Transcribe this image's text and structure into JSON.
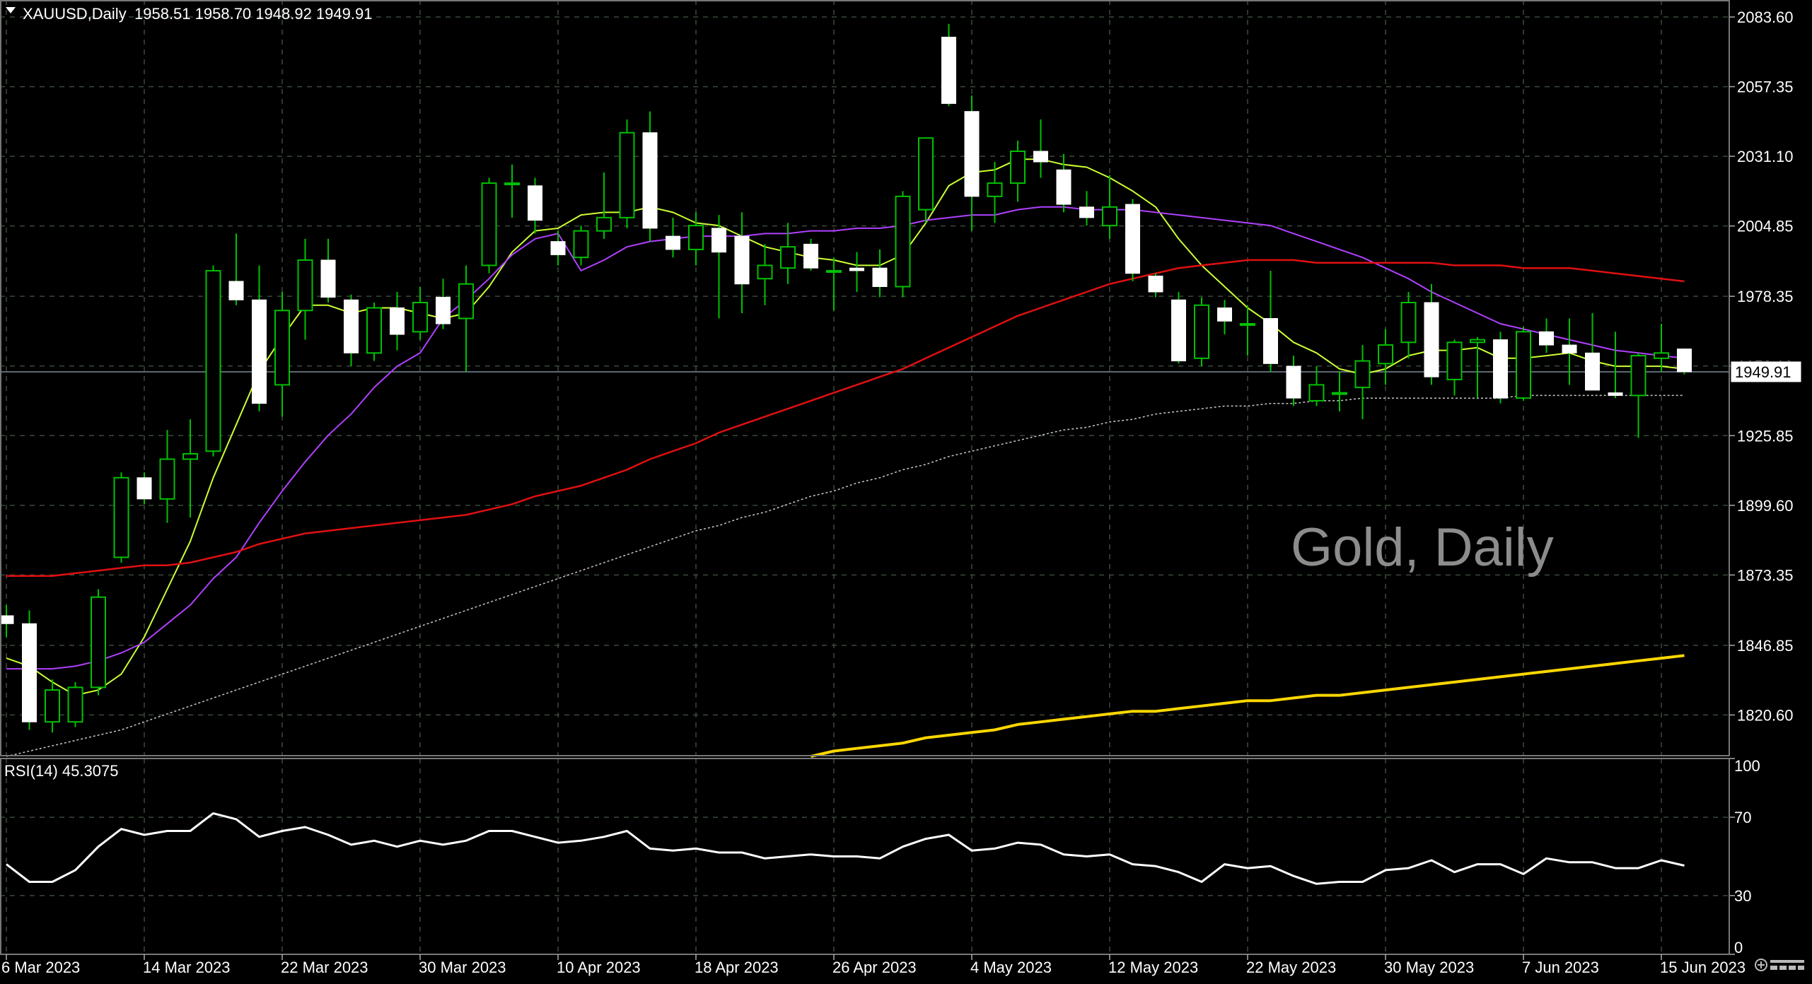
{
  "chart_data": {
    "type": "candlestick",
    "symbol_header": "XAUUSD,Daily",
    "ohlc_header": "1958.51 1958.70 1948.92 1949.91",
    "watermark": "Gold, Daily",
    "current_price_label": "1949.91",
    "current_price": 1949.91,
    "price_range": [
      1805.0,
      2090.0
    ],
    "grid": true,
    "price_ticks": [
      "2083.60",
      "2057.35",
      "2031.10",
      "2004.85",
      "1978.35",
      "1952.10",
      "1925.85",
      "1899.60",
      "1873.35",
      "1846.85",
      "1820.60"
    ],
    "date_labels": [
      "6 Mar 2023",
      "14 Mar 2023",
      "22 Mar 2023",
      "30 Mar 2023",
      "10 Apr 2023",
      "18 Apr 2023",
      "26 Apr 2023",
      "4 May 2023",
      "12 May 2023",
      "22 May 2023",
      "30 May 2023",
      "7 Jun 2023",
      "15 Jun 2023"
    ],
    "date_label_bars": [
      0,
      6,
      12,
      18,
      24,
      30,
      36,
      42,
      48,
      54,
      60,
      66,
      72
    ],
    "colors": {
      "background": "#000000",
      "grid": "#3a4a3a",
      "bull_candle": "#00c000",
      "bear_candle": "#ffffff",
      "ma_short": "#ccff33",
      "ma_medium": "#b040ff",
      "ma_long": "#e01010",
      "ma_very_long": "#c8c8c8",
      "ma_yellow": "#ffd700",
      "rsi_line": "#ffffff"
    },
    "candles": [
      {
        "o": 1858,
        "h": 1862,
        "l": 1850,
        "c": 1855
      },
      {
        "o": 1855,
        "h": 1860,
        "l": 1815,
        "c": 1818
      },
      {
        "o": 1818,
        "h": 1834,
        "l": 1814,
        "c": 1830
      },
      {
        "o": 1818,
        "h": 1833,
        "l": 1816,
        "c": 1831
      },
      {
        "o": 1831,
        "h": 1868,
        "l": 1828,
        "c": 1865
      },
      {
        "o": 1880,
        "h": 1912,
        "l": 1878,
        "c": 1910
      },
      {
        "o": 1910,
        "h": 1912,
        "l": 1900,
        "c": 1902
      },
      {
        "o": 1902,
        "h": 1928,
        "l": 1893,
        "c": 1917
      },
      {
        "o": 1917,
        "h": 1932,
        "l": 1895,
        "c": 1919
      },
      {
        "o": 1920,
        "h": 1990,
        "l": 1918,
        "c": 1988
      },
      {
        "o": 1984,
        "h": 2002,
        "l": 1975,
        "c": 1977
      },
      {
        "o": 1977,
        "h": 1990,
        "l": 1935,
        "c": 1938
      },
      {
        "o": 1945,
        "h": 1980,
        "l": 1933,
        "c": 1973
      },
      {
        "o": 1973,
        "h": 2000,
        "l": 1962,
        "c": 1992
      },
      {
        "o": 1992,
        "h": 2000,
        "l": 1976,
        "c": 1978
      },
      {
        "o": 1977,
        "h": 1979,
        "l": 1952,
        "c": 1957
      },
      {
        "o": 1957,
        "h": 1976,
        "l": 1954,
        "c": 1974
      },
      {
        "o": 1974,
        "h": 1980,
        "l": 1958,
        "c": 1964
      },
      {
        "o": 1965,
        "h": 1982,
        "l": 1962,
        "c": 1976
      },
      {
        "o": 1978,
        "h": 1985,
        "l": 1966,
        "c": 1968
      },
      {
        "o": 1970,
        "h": 1990,
        "l": 1950,
        "c": 1983
      },
      {
        "o": 1990,
        "h": 2023,
        "l": 1987,
        "c": 2021
      },
      {
        "o": 2021,
        "h": 2028,
        "l": 2008,
        "c": 2021
      },
      {
        "o": 2020,
        "h": 2023,
        "l": 2002,
        "c": 2007
      },
      {
        "o": 1999,
        "h": 2003,
        "l": 1990,
        "c": 1994
      },
      {
        "o": 1993,
        "h": 2005,
        "l": 1990,
        "c": 2003
      },
      {
        "o": 2003,
        "h": 2025,
        "l": 2000,
        "c": 2008
      },
      {
        "o": 2008,
        "h": 2045,
        "l": 2004,
        "c": 2040
      },
      {
        "o": 2040,
        "h": 2048,
        "l": 1999,
        "c": 2004
      },
      {
        "o": 2001,
        "h": 2008,
        "l": 1993,
        "c": 1996
      },
      {
        "o": 1996,
        "h": 2010,
        "l": 1990,
        "c": 2005
      },
      {
        "o": 2004,
        "h": 2009,
        "l": 1970,
        "c": 1995
      },
      {
        "o": 2001,
        "h": 2010,
        "l": 1972,
        "c": 1983
      },
      {
        "o": 1985,
        "h": 1998,
        "l": 1975,
        "c": 1990
      },
      {
        "o": 1989,
        "h": 2006,
        "l": 1983,
        "c": 1997
      },
      {
        "o": 1998,
        "h": 2000,
        "l": 1988,
        "c": 1989
      },
      {
        "o": 1988,
        "h": 1993,
        "l": 1973,
        "c": 1988
      },
      {
        "o": 1989,
        "h": 1995,
        "l": 1980,
        "c": 1988
      },
      {
        "o": 1989,
        "h": 1996,
        "l": 1978,
        "c": 1982
      },
      {
        "o": 1982,
        "h": 2018,
        "l": 1978,
        "c": 2016
      },
      {
        "o": 2011,
        "h": 2037,
        "l": 2006,
        "c": 2038
      },
      {
        "o": 2076,
        "h": 2081,
        "l": 2050,
        "c": 2051
      },
      {
        "o": 2048,
        "h": 2054,
        "l": 2003,
        "c": 2016
      },
      {
        "o": 2016,
        "h": 2029,
        "l": 2006,
        "c": 2021
      },
      {
        "o": 2021,
        "h": 2037,
        "l": 2014,
        "c": 2033
      },
      {
        "o": 2033,
        "h": 2045,
        "l": 2023,
        "c": 2029
      },
      {
        "o": 2026,
        "h": 2032,
        "l": 2010,
        "c": 2013
      },
      {
        "o": 2012,
        "h": 2018,
        "l": 2005,
        "c": 2008
      },
      {
        "o": 2005,
        "h": 2024,
        "l": 2000,
        "c": 2012
      },
      {
        "o": 2013,
        "h": 2015,
        "l": 1984,
        "c": 1987
      },
      {
        "o": 1986,
        "h": 1987,
        "l": 1978,
        "c": 1980
      },
      {
        "o": 1977,
        "h": 1980,
        "l": 1953,
        "c": 1954
      },
      {
        "o": 1955,
        "h": 1978,
        "l": 1952,
        "c": 1975
      },
      {
        "o": 1974,
        "h": 1977,
        "l": 1964,
        "c": 1969
      },
      {
        "o": 1968,
        "h": 1975,
        "l": 1956,
        "c": 1968
      },
      {
        "o": 1970,
        "h": 1988,
        "l": 1950,
        "c": 1953
      },
      {
        "o": 1952,
        "h": 1956,
        "l": 1937,
        "c": 1940
      },
      {
        "o": 1939,
        "h": 1952,
        "l": 1937,
        "c": 1945
      },
      {
        "o": 1942,
        "h": 1950,
        "l": 1935,
        "c": 1942
      },
      {
        "o": 1944,
        "h": 1960,
        "l": 1932,
        "c": 1954
      },
      {
        "o": 1953,
        "h": 1966,
        "l": 1945,
        "c": 1960
      },
      {
        "o": 1961,
        "h": 1980,
        "l": 1955,
        "c": 1976
      },
      {
        "o": 1976,
        "h": 1983,
        "l": 1945,
        "c": 1948
      },
      {
        "o": 1947,
        "h": 1962,
        "l": 1941,
        "c": 1961
      },
      {
        "o": 1961,
        "h": 1963,
        "l": 1940,
        "c": 1962
      },
      {
        "o": 1962,
        "h": 1965,
        "l": 1938,
        "c": 1940
      },
      {
        "o": 1940,
        "h": 1967,
        "l": 1939,
        "c": 1965
      },
      {
        "o": 1965,
        "h": 1970,
        "l": 1957,
        "c": 1960
      },
      {
        "o": 1960,
        "h": 1970,
        "l": 1945,
        "c": 1957
      },
      {
        "o": 1957,
        "h": 1972,
        "l": 1944,
        "c": 1943
      },
      {
        "o": 1942,
        "h": 1965,
        "l": 1940,
        "c": 1941
      },
      {
        "o": 1941,
        "h": 1957,
        "l": 1925,
        "c": 1956
      },
      {
        "o": 1955,
        "h": 1968,
        "l": 1950,
        "c": 1957
      },
      {
        "o": 1958.51,
        "h": 1958.7,
        "l": 1948.92,
        "c": 1949.91
      }
    ],
    "moving_averages": [
      {
        "key": "ma_short",
        "values": [
          1842,
          1839,
          1833,
          1828,
          1830,
          1836,
          1850,
          1868,
          1886,
          1910,
          1930,
          1950,
          1963,
          1975,
          1975,
          1972,
          1974,
          1974,
          1972,
          1970,
          1972,
          1982,
          1995,
          2003,
          2004,
          2009,
          2010,
          2010,
          2012,
          2010,
          2006,
          2005,
          2001,
          1997,
          1995,
          1993,
          1992,
          1990,
          1990,
          1994,
          2006,
          2020,
          2025,
          2026,
          2030,
          2030,
          2028,
          2027,
          2023,
          2018,
          2012,
          2000,
          1990,
          1982,
          1974,
          1968,
          1961,
          1957,
          1951,
          1949,
          1951,
          1956,
          1958,
          1958,
          1959,
          1955,
          1955,
          1956,
          1957,
          1954,
          1952,
          1952,
          1952,
          1951
        ]
      },
      {
        "key": "ma_medium",
        "values": [
          1838,
          1838,
          1838,
          1839,
          1841,
          1844,
          1848,
          1855,
          1862,
          1872,
          1880,
          1893,
          1905,
          1916,
          1926,
          1934,
          1944,
          1952,
          1957,
          1970,
          1977,
          1985,
          1994,
          2000,
          2002,
          1988,
          1992,
          1997,
          1999,
          2000,
          2001,
          2001,
          2001,
          2002,
          2002,
          2003,
          2003,
          2004,
          2004,
          2005,
          2007,
          2008,
          2009,
          2009,
          2011,
          2012,
          2012,
          2011,
          2011,
          2011,
          2010,
          2009,
          2008,
          2007,
          2006,
          2005,
          2002,
          1999,
          1996,
          1993,
          1989,
          1985,
          1980,
          1976,
          1972,
          1968,
          1966,
          1964,
          1962,
          1960,
          1958,
          1957,
          1956,
          1955
        ]
      },
      {
        "key": "ma_long",
        "values": [
          1873,
          1873,
          1873,
          1874,
          1875,
          1876,
          1877,
          1877,
          1878,
          1880,
          1882,
          1885,
          1887,
          1889,
          1890,
          1891,
          1892,
          1893,
          1894,
          1895,
          1896,
          1898,
          1900,
          1903,
          1905,
          1907,
          1910,
          1913,
          1917,
          1920,
          1923,
          1927,
          1930,
          1933,
          1936,
          1939,
          1942,
          1945,
          1948,
          1951,
          1955,
          1959,
          1963,
          1967,
          1971,
          1974,
          1977,
          1980,
          1983,
          1985,
          1987,
          1989,
          1990,
          1991,
          1992,
          1992,
          1992,
          1991,
          1991,
          1991,
          1991,
          1991,
          1991,
          1990,
          1990,
          1990,
          1989,
          1989,
          1989,
          1988,
          1987,
          1986,
          1985,
          1984
        ]
      },
      {
        "key": "ma_very_long",
        "values": [
          1805,
          1807,
          1809,
          1811,
          1813,
          1815,
          1818,
          1821,
          1824,
          1827,
          1830,
          1833,
          1836,
          1839,
          1842,
          1845,
          1848,
          1851,
          1854,
          1857,
          1860,
          1863,
          1866,
          1869,
          1872,
          1875,
          1878,
          1881,
          1884,
          1887,
          1890,
          1892,
          1895,
          1897,
          1900,
          1903,
          1905,
          1908,
          1910,
          1913,
          1915,
          1918,
          1920,
          1922,
          1924,
          1926,
          1928,
          1929,
          1931,
          1932,
          1934,
          1935,
          1936,
          1937,
          1937,
          1938,
          1938,
          1939,
          1939,
          1940,
          1940,
          1940,
          1940,
          1940,
          1940,
          1940,
          1941,
          1941,
          1941,
          1941,
          1941,
          1941,
          1941,
          1941
        ]
      },
      {
        "key": "ma_yellow",
        "values": [
          null,
          null,
          null,
          null,
          null,
          null,
          null,
          null,
          null,
          null,
          null,
          null,
          null,
          null,
          null,
          null,
          null,
          null,
          null,
          null,
          null,
          null,
          null,
          null,
          null,
          null,
          null,
          null,
          null,
          null,
          null,
          null,
          null,
          null,
          null,
          1805,
          1807,
          1808,
          1809,
          1810,
          1812,
          1813,
          1814,
          1815,
          1817,
          1818,
          1819,
          1820,
          1821,
          1822,
          1822,
          1823,
          1824,
          1825,
          1826,
          1826,
          1827,
          1828,
          1828,
          1829,
          1830,
          1831,
          1832,
          1833,
          1834,
          1835,
          1836,
          1837,
          1838,
          1839,
          1840,
          1841,
          1842,
          1843
        ]
      }
    ],
    "rsi": {
      "label": "RSI(14) 45.3075",
      "ticks": [
        "100",
        "70",
        "30",
        "0"
      ],
      "tick_values": [
        100,
        70,
        30,
        0
      ],
      "range": [
        0,
        100
      ],
      "values": [
        46,
        37,
        37,
        43,
        55,
        64,
        61,
        63,
        63,
        72,
        69,
        60,
        63,
        65,
        61,
        56,
        58,
        55,
        58,
        56,
        58,
        63,
        63,
        60,
        57,
        58,
        60,
        63,
        54,
        53,
        54,
        52,
        52,
        49,
        50,
        51,
        50,
        50,
        49,
        55,
        59,
        61,
        53,
        54,
        57,
        56,
        51,
        50,
        51,
        46,
        45,
        42,
        37,
        46,
        44,
        45,
        40,
        36,
        37,
        37,
        43,
        44,
        48,
        42,
        46,
        46,
        41,
        49,
        47,
        47,
        44,
        44,
        48,
        45.3
      ]
    }
  }
}
